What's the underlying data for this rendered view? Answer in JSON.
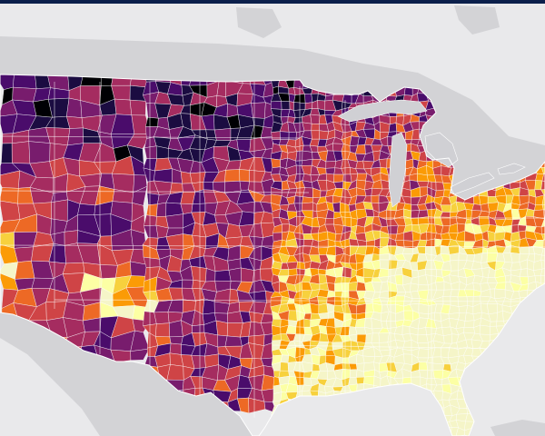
{
  "map": {
    "theme": {
      "top_bar": "#0b1f4b",
      "water": "#e9e9eb",
      "land_outside": "#d3d3d6",
      "lakes": "#d0d0d4",
      "county_border": "#ffffff"
    },
    "palette": [
      "#000004",
      "#1b0c41",
      "#4a0c6b",
      "#781c6d",
      "#a52c60",
      "#cf4446",
      "#ed6925",
      "#fb9b06",
      "#f7d13d",
      "#fcffa4",
      "#f5f5c8"
    ],
    "legend_visible": false,
    "labels_visible": false,
    "basemap": "light-gray"
  }
}
